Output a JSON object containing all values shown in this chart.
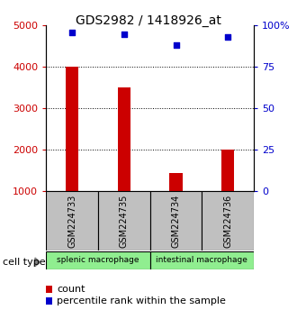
{
  "title": "GDS2982 / 1418926_at",
  "samples": [
    "GSM224733",
    "GSM224735",
    "GSM224734",
    "GSM224736"
  ],
  "counts": [
    4000,
    3500,
    1450,
    2000
  ],
  "percentiles": [
    96,
    95,
    88,
    93
  ],
  "ylim_left": [
    1000,
    5000
  ],
  "ylim_right": [
    0,
    100
  ],
  "yticks_left": [
    1000,
    2000,
    3000,
    4000,
    5000
  ],
  "yticks_right": [
    0,
    25,
    50,
    75,
    100
  ],
  "yticklabels_right": [
    "0",
    "25",
    "50",
    "75",
    "100%"
  ],
  "bar_color": "#CC0000",
  "dot_color": "#0000CC",
  "bar_width": 0.25,
  "cell_type_label": "cell type",
  "legend_count_label": "count",
  "legend_percentile_label": "percentile rank within the sample",
  "title_fontsize": 10,
  "axis_label_color_left": "#CC0000",
  "axis_label_color_right": "#0000CC",
  "sample_box_color": "#C0C0C0",
  "group_box_color": "#90EE90",
  "grid_yticks": [
    2000,
    3000,
    4000
  ],
  "dot_size": 25
}
